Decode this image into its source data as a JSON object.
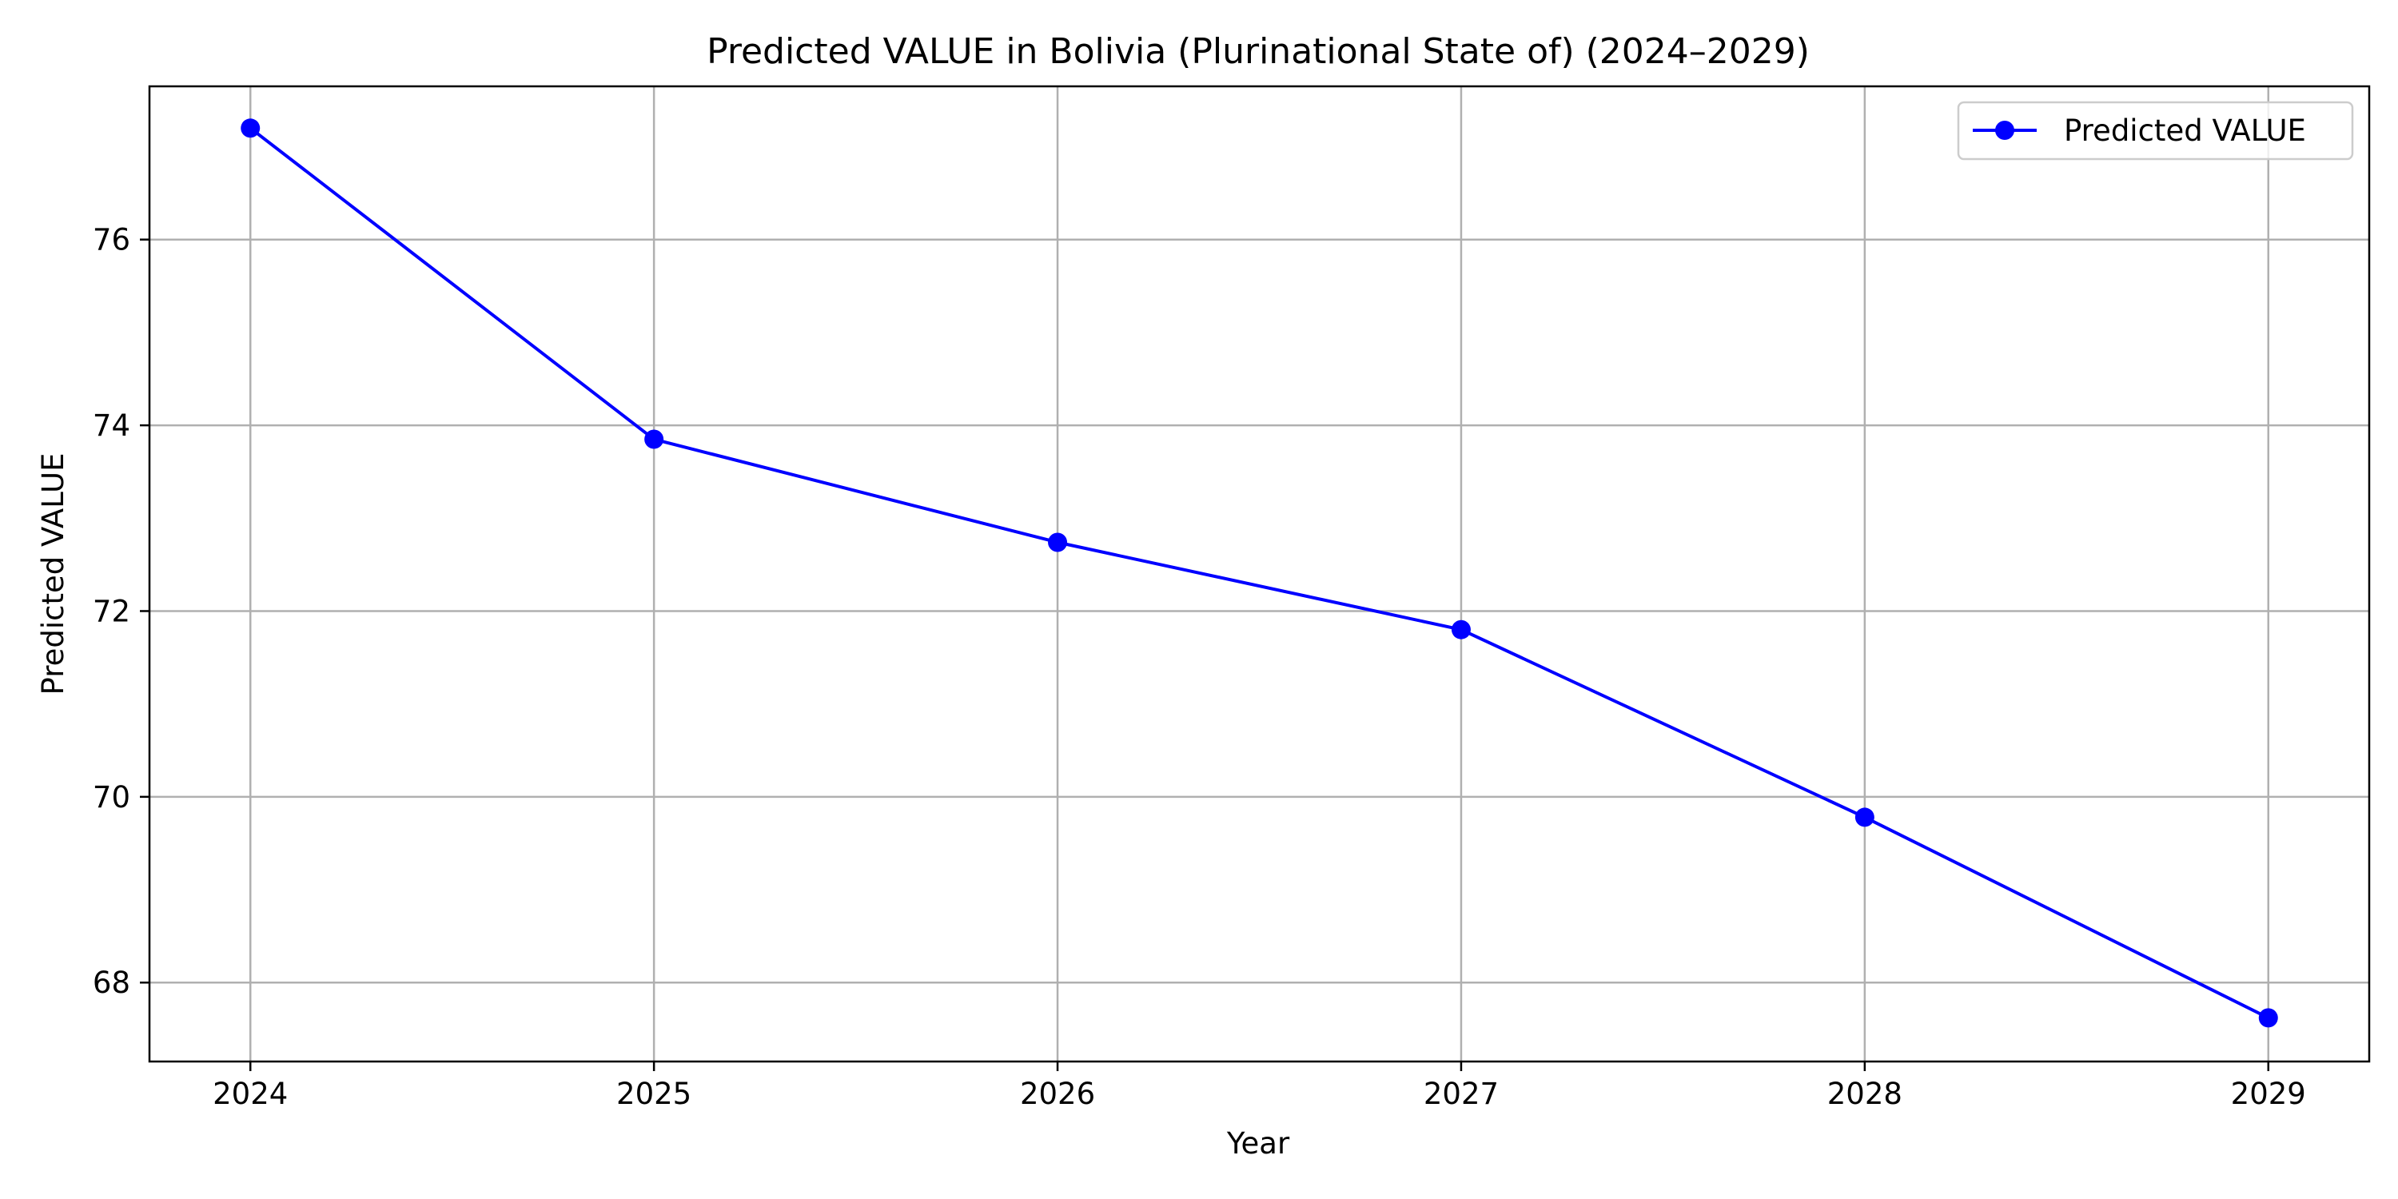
{
  "chart_data": {
    "type": "line",
    "title": "Predicted VALUE in Bolivia (Plurinational State of) (2024–2029)",
    "xlabel": "Year",
    "ylabel": "Predicted VALUE",
    "x": [
      "2024",
      "2025",
      "2026",
      "2027",
      "2028",
      "2029"
    ],
    "series": [
      {
        "name": "Predicted VALUE",
        "color": "#0000ff",
        "marker": "circle",
        "values": [
          77.2,
          73.85,
          72.74,
          71.8,
          69.78,
          67.62
        ]
      }
    ],
    "yticks": [
      "68",
      "70",
      "72",
      "74",
      "76"
    ],
    "xlim": [
      2023.75,
      2029.25
    ],
    "ylim": [
      67.15,
      77.65
    ],
    "grid": true,
    "legend_position": "top-right"
  }
}
